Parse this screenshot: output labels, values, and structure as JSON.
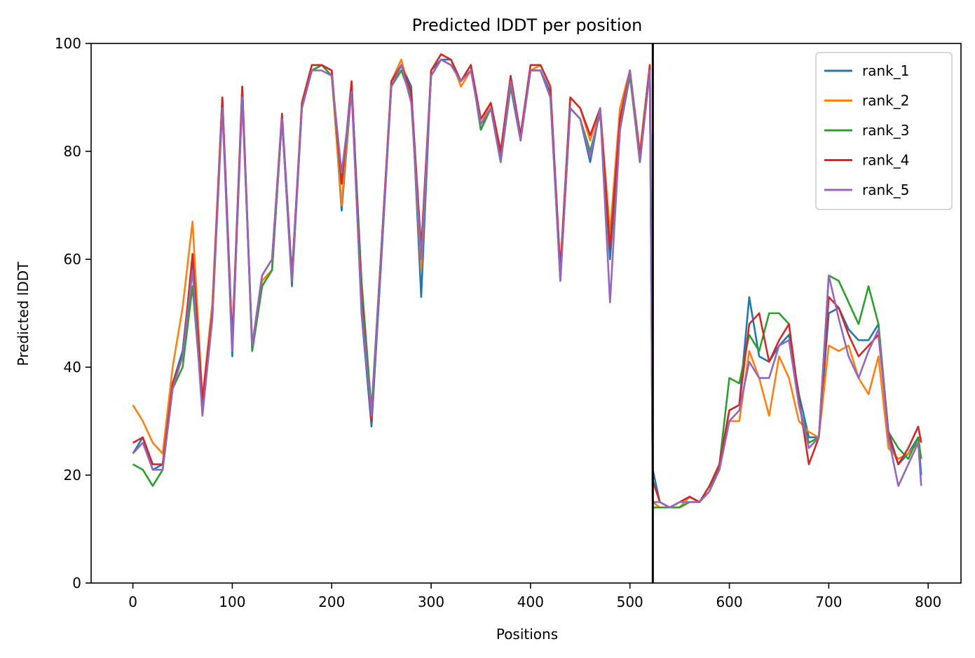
{
  "chart_data": {
    "type": "line",
    "title": "Predicted lDDT per position",
    "xlabel": "Positions",
    "ylabel": "Predicted lDDT",
    "xlim": [
      -42,
      833
    ],
    "ylim": [
      0,
      100
    ],
    "xticks": [
      0,
      100,
      200,
      300,
      400,
      500,
      600,
      700,
      800
    ],
    "yticks": [
      0,
      20,
      40,
      60,
      80,
      100
    ],
    "grid": false,
    "legend_position": "top-right",
    "chain_break": 523,
    "x": [
      0,
      10,
      20,
      30,
      40,
      50,
      60,
      70,
      80,
      90,
      100,
      110,
      120,
      130,
      140,
      150,
      160,
      170,
      180,
      190,
      200,
      210,
      220,
      230,
      240,
      250,
      260,
      270,
      280,
      290,
      300,
      310,
      320,
      330,
      340,
      350,
      360,
      370,
      380,
      390,
      400,
      410,
      420,
      430,
      440,
      450,
      460,
      470,
      480,
      490,
      500,
      510,
      520,
      523,
      530,
      540,
      550,
      560,
      570,
      580,
      590,
      600,
      610,
      620,
      630,
      640,
      650,
      660,
      670,
      680,
      690,
      700,
      710,
      720,
      730,
      740,
      750,
      760,
      770,
      780,
      790,
      793
    ],
    "series": [
      {
        "name": "rank_1",
        "color": "#1f77b4",
        "values": [
          24,
          27,
          21,
          22,
          37,
          43,
          60,
          33,
          50,
          90,
          42,
          92,
          43,
          55,
          58,
          86,
          55,
          88,
          95,
          96,
          95,
          69,
          92,
          50,
          29,
          60,
          92,
          96,
          92,
          53,
          95,
          97,
          97,
          93,
          96,
          84,
          88,
          78,
          92,
          82,
          95,
          95,
          91,
          56,
          88,
          86,
          78,
          88,
          60,
          84,
          95,
          78,
          95,
          21,
          15,
          14,
          14,
          16,
          15,
          18,
          22,
          32,
          33,
          53,
          42,
          41,
          44,
          46,
          35,
          27,
          27,
          50,
          51,
          47,
          45,
          45,
          48,
          27,
          22,
          24,
          27,
          20
        ]
      },
      {
        "name": "rank_2",
        "color": "#ff7f0e",
        "values": [
          33,
          30,
          26,
          24,
          40,
          51,
          67,
          34,
          52,
          90,
          44,
          90,
          44,
          56,
          58,
          86,
          56,
          89,
          96,
          96,
          94,
          70,
          93,
          52,
          31,
          62,
          93,
          97,
          90,
          58,
          95,
          98,
          97,
          92,
          95,
          85,
          89,
          80,
          93,
          83,
          95,
          96,
          92,
          58,
          90,
          88,
          82,
          88,
          65,
          88,
          95,
          80,
          96,
          15,
          14,
          14,
          14,
          16,
          15,
          18,
          21,
          30,
          30,
          43,
          38,
          31,
          42,
          38,
          30,
          28,
          27,
          44,
          43,
          44,
          38,
          35,
          42,
          25,
          23,
          24,
          26,
          27
        ]
      },
      {
        "name": "rank_3",
        "color": "#2ca02c",
        "values": [
          22,
          21,
          18,
          21,
          36,
          40,
          55,
          33,
          50,
          89,
          44,
          91,
          43,
          55,
          58,
          86,
          57,
          88,
          95,
          96,
          94,
          74,
          92,
          56,
          32,
          62,
          92,
          95,
          90,
          60,
          94,
          97,
          96,
          93,
          96,
          84,
          88,
          79,
          92,
          83,
          95,
          95,
          90,
          58,
          88,
          86,
          80,
          87,
          62,
          84,
          94,
          78,
          95,
          14,
          14,
          14,
          14,
          15,
          15,
          17,
          22,
          38,
          37,
          46,
          43,
          50,
          50,
          48,
          33,
          26,
          27,
          57,
          56,
          52,
          48,
          55,
          48,
          28,
          25,
          23,
          27,
          23
        ]
      },
      {
        "name": "rank_4",
        "color": "#d62728",
        "values": [
          26,
          27,
          22,
          22,
          37,
          42,
          61,
          34,
          50,
          90,
          45,
          92,
          44,
          57,
          60,
          87,
          57,
          89,
          96,
          96,
          95,
          74,
          93,
          53,
          30,
          62,
          93,
          96,
          91,
          62,
          95,
          98,
          97,
          93,
          96,
          86,
          89,
          80,
          94,
          83,
          96,
          96,
          92,
          58,
          90,
          88,
          83,
          88,
          62,
          86,
          95,
          79,
          96,
          19,
          15,
          14,
          15,
          16,
          15,
          18,
          22,
          32,
          33,
          48,
          50,
          41,
          45,
          48,
          34,
          22,
          27,
          53,
          51,
          46,
          42,
          44,
          46,
          28,
          22,
          25,
          29,
          26
        ]
      },
      {
        "name": "rank_5",
        "color": "#9467bd",
        "values": [
          24,
          26,
          21,
          21,
          36,
          42,
          58,
          31,
          49,
          88,
          43,
          90,
          44,
          57,
          60,
          86,
          56,
          88,
          95,
          95,
          94,
          76,
          91,
          51,
          31,
          61,
          92,
          96,
          89,
          60,
          94,
          97,
          96,
          93,
          95,
          85,
          88,
          78,
          93,
          82,
          95,
          95,
          90,
          56,
          88,
          86,
          79,
          88,
          52,
          84,
          95,
          78,
          95,
          15,
          15,
          14,
          15,
          15,
          15,
          17,
          21,
          30,
          32,
          41,
          38,
          38,
          44,
          45,
          33,
          25,
          27,
          57,
          49,
          42,
          38,
          43,
          47,
          27,
          18,
          22,
          26,
          18
        ]
      }
    ]
  }
}
